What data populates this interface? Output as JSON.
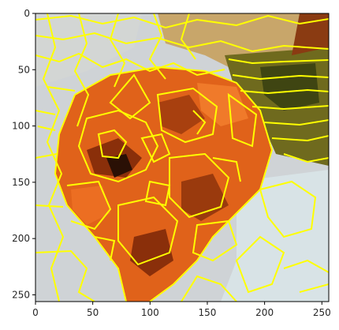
{
  "figure": {
    "description_type": "segmentation-overlay",
    "overlay_color": "#ffff00",
    "colors": {
      "background_grey": "#cfd3d6",
      "pale_blue": "#d8e3e6",
      "flower_orange": "#e0621a",
      "flower_dark": "#8a2f0a",
      "flower_brown": "#5a1f08",
      "leaf_olive": "#6f6a1e",
      "leaf_dark": "#3f4512",
      "tan": "#c8a66a"
    }
  },
  "axes": {
    "x_range": [
      0,
      256
    ],
    "y_range": [
      0,
      256
    ],
    "y_inverted": true,
    "x_ticks": [
      {
        "value": 0,
        "label": "0"
      },
      {
        "value": 50,
        "label": "50"
      },
      {
        "value": 100,
        "label": "100"
      },
      {
        "value": 150,
        "label": "150"
      },
      {
        "value": 200,
        "label": "200"
      },
      {
        "value": 250,
        "label": "250"
      }
    ],
    "y_ticks": [
      {
        "value": 0,
        "label": "0"
      },
      {
        "value": 50,
        "label": "50"
      },
      {
        "value": 100,
        "label": "100"
      },
      {
        "value": 150,
        "label": "150"
      },
      {
        "value": 200,
        "label": "200"
      },
      {
        "value": 250,
        "label": "250"
      }
    ]
  }
}
